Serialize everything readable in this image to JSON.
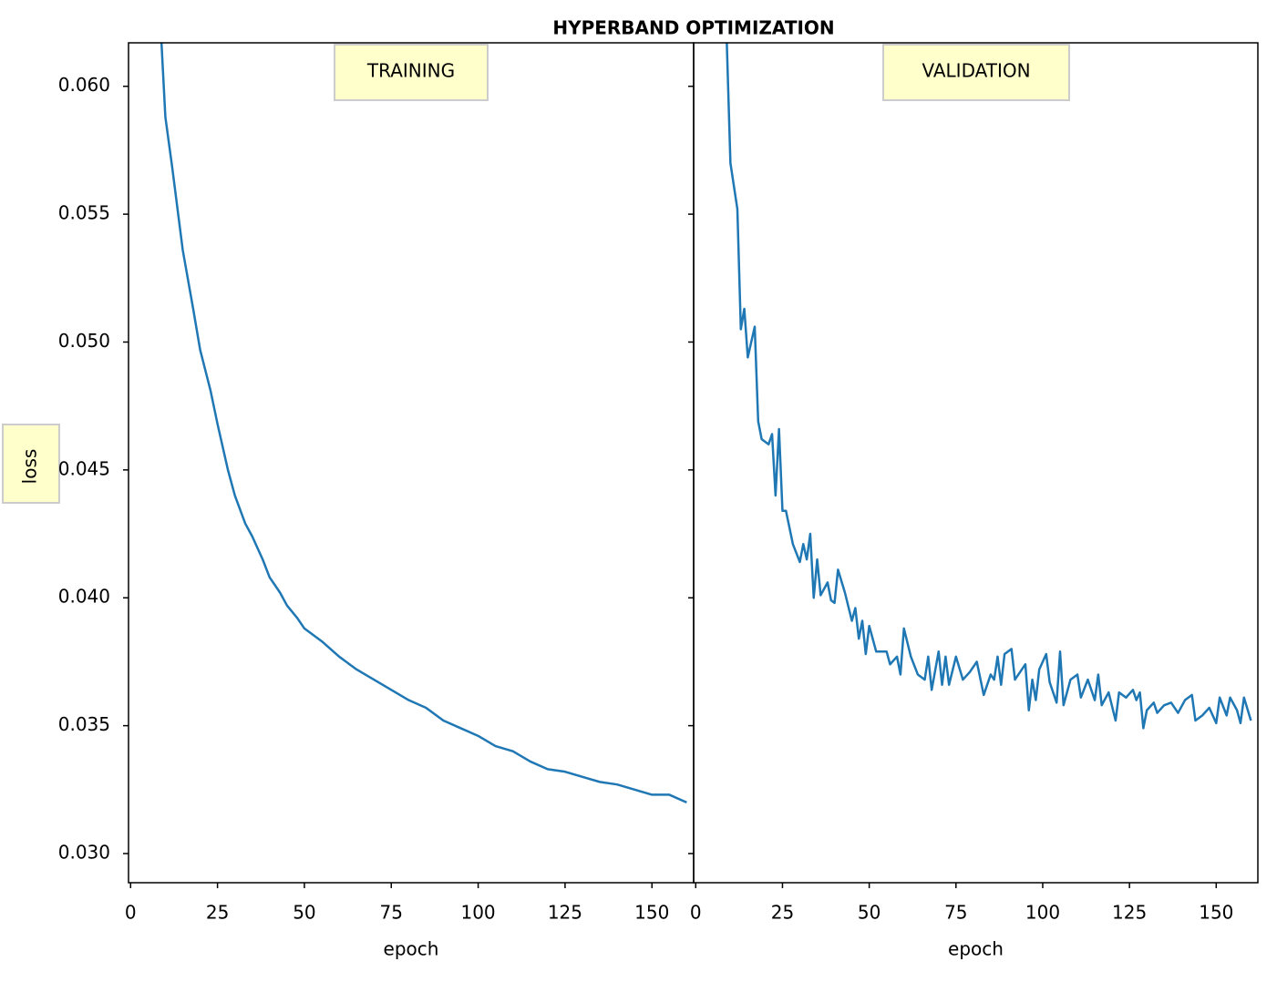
{
  "chart_data": [
    {
      "type": "line",
      "title": "HYPERBAND OPTIMIZATION",
      "ylabel": "loss",
      "annotation": "TRAINING",
      "xlabel": "epoch",
      "x": [
        8,
        10,
        12,
        15,
        18,
        20,
        23,
        25,
        28,
        30,
        33,
        35,
        38,
        40,
        43,
        45,
        48,
        50,
        55,
        60,
        65,
        70,
        75,
        80,
        85,
        90,
        95,
        100,
        105,
        110,
        115,
        120,
        125,
        130,
        135,
        140,
        145,
        150,
        155,
        160
      ],
      "series": [
        {
          "color": "#1f77b4",
          "values": [
            0.064,
            0.0588,
            0.0568,
            0.0536,
            0.0513,
            0.0497,
            0.0481,
            0.0468,
            0.045,
            0.044,
            0.0429,
            0.0424,
            0.0415,
            0.0408,
            0.0402,
            0.0397,
            0.0392,
            0.0388,
            0.0383,
            0.0377,
            0.0372,
            0.0368,
            0.0364,
            0.036,
            0.0357,
            0.0352,
            0.0349,
            0.0346,
            0.0342,
            0.034,
            0.0336,
            0.0333,
            0.0332,
            0.033,
            0.0328,
            0.0327,
            0.0325,
            0.0323,
            0.0323,
            0.032
          ]
        }
      ],
      "xlim": [
        -0.6,
        162
      ],
      "ylim": [
        0.02886,
        0.0617
      ],
      "xticks": [
        0,
        25,
        50,
        75,
        100,
        125,
        150
      ],
      "yticks": [
        {
          "value": 0.03,
          "label": "0.030"
        },
        0.035,
        {
          "value": 0.04,
          "label": "0.040"
        },
        0.045,
        {
          "value": 0.05,
          "label": "0.050"
        },
        0.055,
        {
          "value": 0.06,
          "label": "0.060"
        }
      ]
    },
    {
      "type": "line",
      "annotation": "VALIDATION",
      "xlabel": "epoch",
      "x": [
        8,
        10,
        12,
        13,
        14,
        15,
        17,
        18,
        19,
        21,
        22,
        23,
        24,
        25,
        26,
        28,
        30,
        31,
        32,
        33,
        34,
        35,
        36,
        38,
        39,
        40,
        41,
        43,
        45,
        46,
        47,
        48,
        49,
        50,
        52,
        55,
        56,
        58,
        59,
        60,
        62,
        64,
        66,
        67,
        68,
        70,
        71,
        72,
        73,
        75,
        77,
        79,
        81,
        83,
        85,
        86,
        87,
        88,
        89,
        91,
        92,
        94,
        95,
        96,
        97,
        98,
        99,
        101,
        102,
        104,
        105,
        106,
        108,
        110,
        111,
        113,
        115,
        116,
        117,
        119,
        121,
        122,
        124,
        126,
        127,
        128,
        129,
        130,
        132,
        133,
        135,
        137,
        139,
        141,
        143,
        144,
        146,
        148,
        150,
        151,
        153,
        154,
        156,
        157,
        158,
        160
      ],
      "series": [
        {
          "color": "#1f77b4",
          "values": [
            0.066,
            0.057,
            0.0552,
            0.0505,
            0.0513,
            0.0494,
            0.0506,
            0.0469,
            0.0462,
            0.046,
            0.0464,
            0.044,
            0.0466,
            0.0434,
            0.0434,
            0.0421,
            0.0414,
            0.0421,
            0.0415,
            0.0425,
            0.04,
            0.0415,
            0.0401,
            0.0406,
            0.0399,
            0.0398,
            0.0411,
            0.0402,
            0.0391,
            0.0396,
            0.0384,
            0.0391,
            0.0378,
            0.0389,
            0.0379,
            0.0379,
            0.0374,
            0.0377,
            0.037,
            0.0388,
            0.0377,
            0.037,
            0.0368,
            0.0377,
            0.0364,
            0.0379,
            0.0366,
            0.0377,
            0.0366,
            0.0377,
            0.0368,
            0.0371,
            0.0375,
            0.0362,
            0.037,
            0.0368,
            0.0377,
            0.0366,
            0.0378,
            0.038,
            0.0368,
            0.0372,
            0.0374,
            0.0356,
            0.0368,
            0.036,
            0.0372,
            0.0378,
            0.0367,
            0.0359,
            0.0379,
            0.0358,
            0.0368,
            0.037,
            0.0361,
            0.0368,
            0.036,
            0.037,
            0.0358,
            0.0363,
            0.0352,
            0.0363,
            0.0361,
            0.0364,
            0.036,
            0.0363,
            0.0349,
            0.0356,
            0.0359,
            0.0355,
            0.0358,
            0.0359,
            0.0355,
            0.036,
            0.0362,
            0.0352,
            0.0354,
            0.0357,
            0.0351,
            0.0361,
            0.0354,
            0.0361,
            0.0356,
            0.0351,
            0.0361,
            0.0352
          ]
        }
      ],
      "xlim": [
        -0.6,
        162
      ],
      "ylim": [
        0.02886,
        0.0617
      ],
      "xticks": [
        0,
        25,
        50,
        75,
        100,
        125,
        150
      ]
    }
  ]
}
